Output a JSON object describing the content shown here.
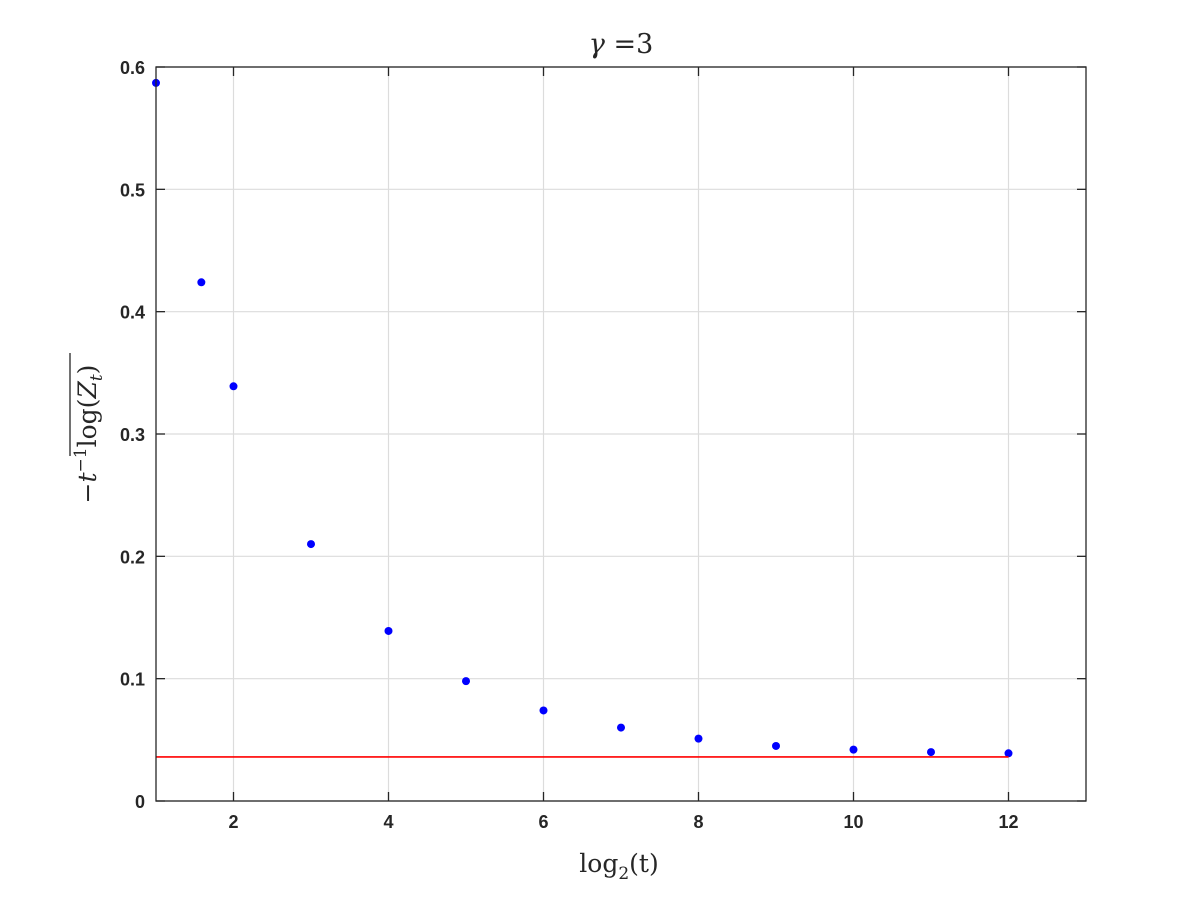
{
  "chart_data": {
    "type": "scatter",
    "title": "γ =3",
    "title_parts": {
      "symbol": "γ",
      "text": " =3"
    },
    "xlabel": "log2(t)",
    "xlabel_parts": {
      "func": "log",
      "sub": "2",
      "arg": "(t)"
    },
    "ylabel": "−t−1 log(Zt)",
    "ylabel_parts": {
      "sign": "−",
      "var": "t",
      "exp": "−1",
      "func": "log",
      "open": "(",
      "var2": "Z",
      "sub": "t",
      "close": ")"
    },
    "xlim": [
      1,
      13
    ],
    "ylim": [
      0,
      0.6
    ],
    "x_ticks": [
      2,
      4,
      6,
      8,
      10,
      12
    ],
    "x_tick_labels": [
      "2",
      "4",
      "6",
      "8",
      "10",
      "12"
    ],
    "y_ticks": [
      0,
      0.1,
      0.2,
      0.3,
      0.4,
      0.5,
      0.6
    ],
    "y_tick_labels": [
      "0",
      "0.1",
      "0.2",
      "0.3",
      "0.4",
      "0.5",
      "0.6"
    ],
    "grid": true,
    "series": [
      {
        "type": "scatter",
        "color": "#0000ff",
        "x": [
          1,
          1.585,
          2,
          3,
          4,
          5,
          6,
          7,
          8,
          9,
          10,
          11,
          12
        ],
        "y": [
          0.587,
          0.424,
          0.339,
          0.21,
          0.139,
          0.098,
          0.074,
          0.06,
          0.051,
          0.045,
          0.042,
          0.04,
          0.039
        ]
      },
      {
        "type": "line",
        "color": "#ff0000",
        "x": [
          1,
          12
        ],
        "y": [
          0.036,
          0.036
        ]
      }
    ]
  }
}
